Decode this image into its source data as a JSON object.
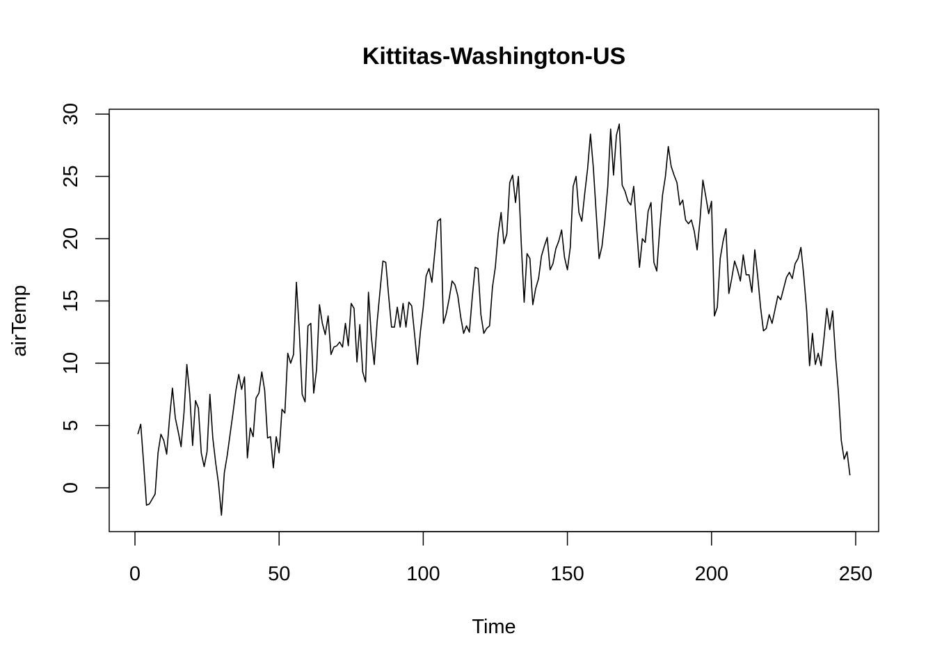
{
  "chart_data": {
    "type": "line",
    "title": "Kittitas-Washington-US",
    "xlabel": "Time",
    "ylabel": "airTemp",
    "xlim": [
      0,
      250
    ],
    "ylim": [
      -2.2,
      29.2
    ],
    "xticks": [
      0,
      50,
      100,
      150,
      200,
      250
    ],
    "yticks": [
      0,
      5,
      10,
      15,
      20,
      25,
      30
    ],
    "xtick_labels": [
      "0",
      "50",
      "100",
      "150",
      "200",
      "250"
    ],
    "ytick_labels": [
      "0",
      "5",
      "10",
      "15",
      "20",
      "25",
      "30"
    ],
    "grid": false,
    "legend": "none",
    "line_color": "#000000",
    "series": [
      {
        "x_start": 1,
        "values": [
          4.3,
          5.1,
          2.0,
          -1.4,
          -1.3,
          -0.9,
          -0.5,
          2.8,
          4.3,
          3.8,
          2.7,
          5.6,
          8.0,
          5.6,
          4.5,
          3.3,
          6.0,
          9.9,
          7.5,
          3.4,
          7.0,
          6.4,
          2.8,
          1.7,
          2.9,
          7.5,
          4.0,
          2.0,
          0.3,
          -2.2,
          1.2,
          2.6,
          4.3,
          6.0,
          7.8,
          9.1,
          7.9,
          8.9,
          2.4,
          4.8,
          4.1,
          7.2,
          7.6,
          9.3,
          7.8,
          4.0,
          4.1,
          1.6,
          4.1,
          2.8,
          6.3,
          6.0,
          10.8,
          10.0,
          10.7,
          16.5,
          12.6,
          7.5,
          6.9,
          13.0,
          13.2,
          7.6,
          9.5,
          14.7,
          13.2,
          12.3,
          13.8,
          10.7,
          11.3,
          11.4,
          11.7,
          11.3,
          13.2,
          11.4,
          14.8,
          14.4,
          10.1,
          13.1,
          9.3,
          8.5,
          15.7,
          12.1,
          9.9,
          13.3,
          15.8,
          18.2,
          18.1,
          15.4,
          12.9,
          12.9,
          14.5,
          12.9,
          14.8,
          12.9,
          14.9,
          14.6,
          12.3,
          9.9,
          12.5,
          14.5,
          17.0,
          17.6,
          16.5,
          18.9,
          21.4,
          21.6,
          13.2,
          14.0,
          15.2,
          16.6,
          16.3,
          15.4,
          13.7,
          12.4,
          13.0,
          12.5,
          15.3,
          17.7,
          17.6,
          13.9,
          12.4,
          12.8,
          13.0,
          16.1,
          17.7,
          20.4,
          22.1,
          19.6,
          20.4,
          24.5,
          25.1,
          22.9,
          25.0,
          19.6,
          14.9,
          18.8,
          18.4,
          14.7,
          16.0,
          16.8,
          18.6,
          19.4,
          20.1,
          17.5,
          18.0,
          19.2,
          19.8,
          20.7,
          18.5,
          17.5,
          19.3,
          24.2,
          25.0,
          22.1,
          21.4,
          23.6,
          25.6,
          28.4,
          25.7,
          22.0,
          18.4,
          19.4,
          21.5,
          24.2,
          28.8,
          25.1,
          28.3,
          29.2,
          24.3,
          23.8,
          23.0,
          22.7,
          24.2,
          20.9,
          17.7,
          20.0,
          19.7,
          22.2,
          22.9,
          18.1,
          17.4,
          20.7,
          23.5,
          25.0,
          27.4,
          25.8,
          25.1,
          24.5,
          22.7,
          23.1,
          21.5,
          21.2,
          21.5,
          20.6,
          19.1,
          21.5,
          24.7,
          23.4,
          22.0,
          23.0,
          13.8,
          14.5,
          18.4,
          19.8,
          20.8,
          15.6,
          16.8,
          18.2,
          17.5,
          16.6,
          18.7,
          17.1,
          17.1,
          15.7,
          19.1,
          17.0,
          14.5,
          12.6,
          12.8,
          13.9,
          13.2,
          14.3,
          15.4,
          15.1,
          16.0,
          16.9,
          17.3,
          16.8,
          18.0,
          18.4,
          19.3,
          17.0,
          14.2,
          9.8,
          12.4,
          9.9,
          10.8,
          9.8,
          12.0,
          14.4,
          12.7,
          14.2,
          10.6,
          7.7,
          3.8,
          2.3,
          2.9,
          1.0
        ]
      }
    ]
  }
}
